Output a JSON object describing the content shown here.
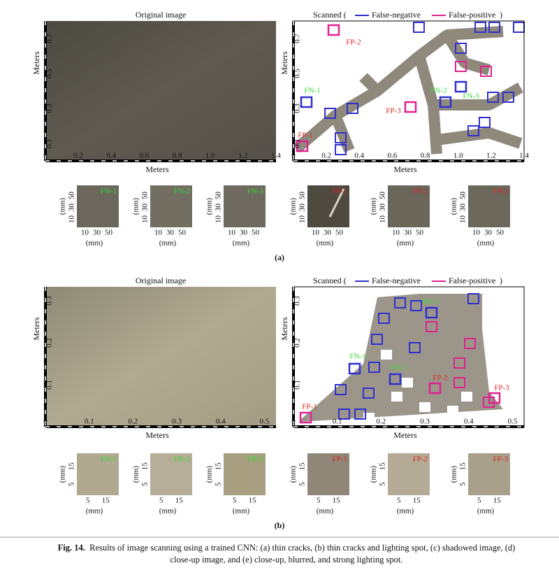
{
  "panels": [
    {
      "label": "(a)",
      "original": {
        "title": "Original image",
        "x_label": "Meters",
        "y_label": "Meters",
        "x_ticks": [
          "0",
          "0.2",
          "0.4",
          "0.6",
          "0.8",
          "1.0",
          "1.2",
          "1.4"
        ],
        "y_ticks": [
          "0.1",
          "0.3",
          "0.5",
          "0.7"
        ]
      },
      "scanned": {
        "title_open": "Scanned (",
        "legend": [
          "False-negative",
          "False-positive"
        ],
        "title_close": ")",
        "x_label": "Meters",
        "y_label": "Meters",
        "x_ticks": [
          "0",
          "0.2",
          "0.4",
          "0.6",
          "0.8",
          "1.0",
          "1.2",
          "1.4"
        ],
        "y_ticks": [
          "0.1",
          "0.3",
          "0.5",
          "0.7"
        ],
        "markers": [
          "FP-1",
          "FP-2",
          "FP-3",
          "FN-1",
          "FN-2",
          "FN-3"
        ]
      },
      "thumbnail_axes": {
        "ticks": [
          "10",
          "30",
          "50"
        ],
        "unit": "(mm)"
      },
      "thumbnails": [
        "FN-1",
        "FN-2",
        "FN-3",
        "FP-1",
        "FP-2",
        "FP-3"
      ]
    },
    {
      "label": "(b)",
      "original": {
        "title": "Original image",
        "x_label": "Meters",
        "y_label": "Meters",
        "x_ticks": [
          "0",
          "0.1",
          "0.2",
          "0.3",
          "0.4",
          "0.5"
        ],
        "y_ticks": [
          "0.1",
          "0.2",
          "0.3"
        ]
      },
      "scanned": {
        "title_open": "Scanned (",
        "legend": [
          "False-negative",
          "False-positive"
        ],
        "title_close": ")",
        "x_label": "Meters",
        "y_label": "Meters",
        "x_ticks": [
          "0",
          "0.1",
          "0.2",
          "0.3",
          "0.4",
          "0.5"
        ],
        "y_ticks": [
          "0.1",
          "0.2",
          "0.3"
        ],
        "markers": [
          "FP-1",
          "FP-2",
          "FP-3",
          "FN-1",
          "FN-2",
          "FN-3"
        ]
      },
      "thumbnail_axes": {
        "ticks": [
          "5",
          "15"
        ],
        "unit": "(mm)"
      },
      "thumbnails": [
        "FN-1",
        "FN-2",
        "FN-3",
        "FP-1",
        "FP-2",
        "FP-3"
      ]
    }
  ],
  "caption": {
    "label": "Fig. 14.",
    "lines": [
      "Results of image scanning using a trained CNN: (a) thin cracks, (b) thin cracks and lighting spot, (c) shadowed image, (d)",
      "close-up image, and (e) close-up, blurred, and strong lighting spot."
    ]
  }
}
